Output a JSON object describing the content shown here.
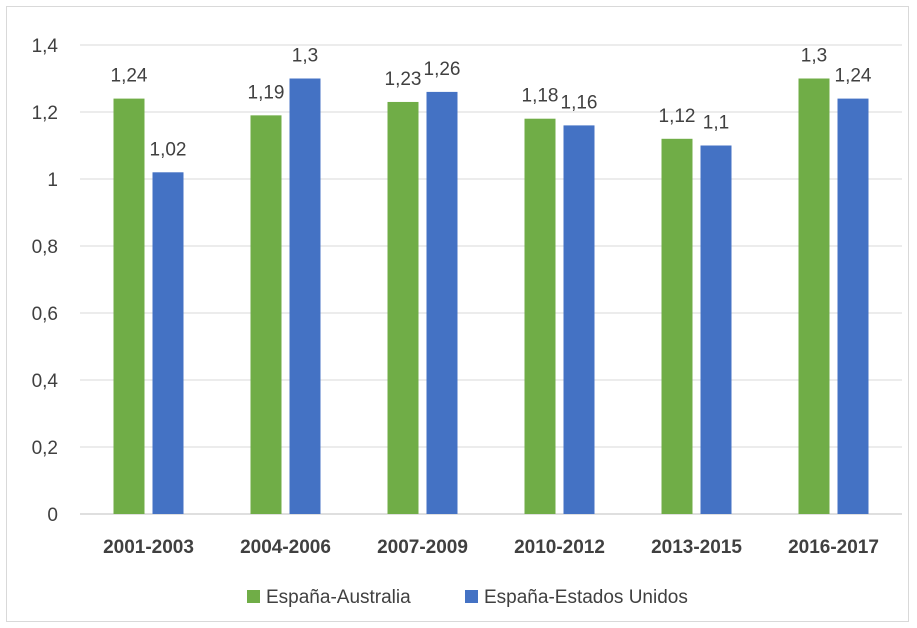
{
  "chart_data": {
    "type": "bar",
    "categories": [
      "2001-2003",
      "2004-2006",
      "2007-2009",
      "2010-2012",
      "2013-2015",
      "2016-2017"
    ],
    "series": [
      {
        "name": "España-Australia",
        "values": [
          1.24,
          1.19,
          1.23,
          1.18,
          1.12,
          1.3
        ],
        "labels": [
          "1,24",
          "1,19",
          "1,23",
          "1,18",
          "1,12",
          "1,3"
        ],
        "color": "#70ad47"
      },
      {
        "name": "España-Estados Unidos",
        "values": [
          1.02,
          1.3,
          1.26,
          1.16,
          1.1,
          1.24
        ],
        "labels": [
          "1,02",
          "1,3",
          "1,26",
          "1,16",
          "1,1",
          "1,24"
        ],
        "color": "#4472c4"
      }
    ],
    "y_ticks": [
      "0",
      "0,2",
      "0,4",
      "0,6",
      "0,8",
      "1",
      "1,2",
      "1,4"
    ],
    "y_tick_values": [
      0,
      0.2,
      0.4,
      0.6,
      0.8,
      1,
      1.2,
      1.4
    ],
    "ylim": [
      0,
      1.4
    ],
    "grid": true,
    "legend_position": "bottom",
    "gridline_color": "#d9d9d9",
    "axis_color": "#bfbfbf"
  }
}
